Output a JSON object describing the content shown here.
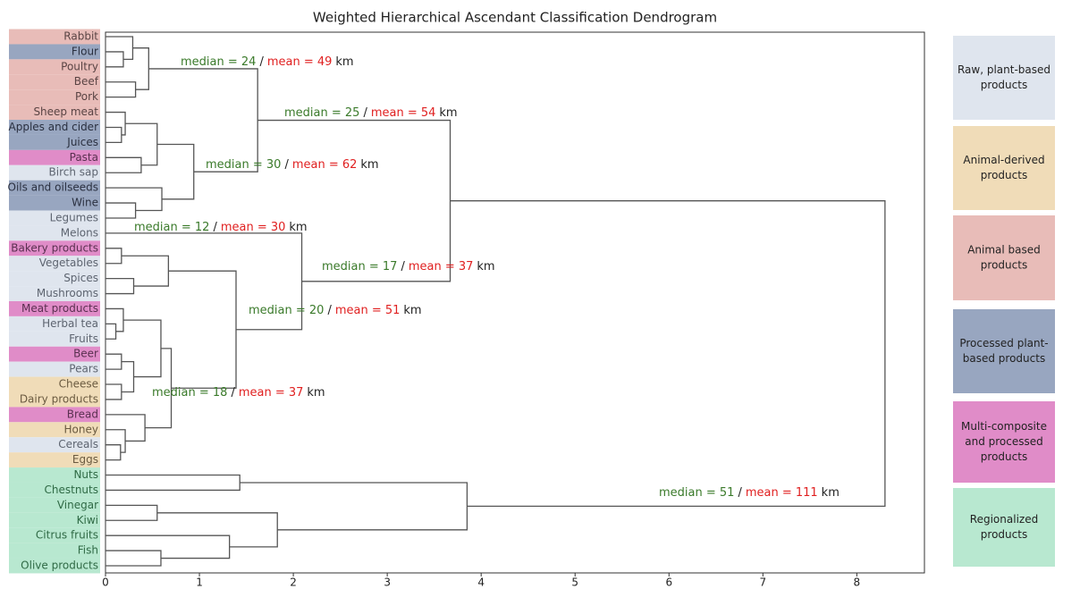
{
  "chart_data": {
    "type": "dendrogram",
    "title": "Weighted Hierarchical Ascendant Classification Dendrogram",
    "groups": [
      {
        "lines": [
          "Raw, plant-based",
          "products"
        ],
        "color": "#dfe5ee",
        "text_color": "#5d6470"
      },
      {
        "lines": [
          "Animal-derived",
          "products"
        ],
        "color": "#f0dcb8",
        "text_color": "#6a5a40"
      },
      {
        "lines": [
          "Animal based",
          "products"
        ],
        "color": "#e8bcb8",
        "text_color": "#5a4444"
      },
      {
        "lines": [
          "Processed plant-",
          "based products"
        ],
        "color": "#98a6c0",
        "text_color": "#2a3040"
      },
      {
        "lines": [
          "Multi-composite",
          "and processed",
          "products"
        ],
        "color": "#e08cc8",
        "text_color": "#5a3050"
      },
      {
        "lines": [
          "Regionalized",
          "products"
        ],
        "color": "#b8e8d0",
        "text_color": "#2f6a45"
      }
    ],
    "leaves": [
      {
        "label": "Rabbit",
        "group": 2
      },
      {
        "label": "Flour",
        "group": 3
      },
      {
        "label": "Poultry",
        "group": 2
      },
      {
        "label": "Beef",
        "group": 2
      },
      {
        "label": "Pork",
        "group": 2
      },
      {
        "label": "Sheep meat",
        "group": 2
      },
      {
        "label": "Apples and cider",
        "group": 3
      },
      {
        "label": "Juices",
        "group": 3
      },
      {
        "label": "Pasta",
        "group": 4
      },
      {
        "label": "Birch sap",
        "group": 0
      },
      {
        "label": "Oils and oilseeds",
        "group": 3
      },
      {
        "label": "Wine",
        "group": 3
      },
      {
        "label": "Legumes",
        "group": 0
      },
      {
        "label": "Melons",
        "group": 0
      },
      {
        "label": "Bakery products",
        "group": 4
      },
      {
        "label": "Vegetables",
        "group": 0
      },
      {
        "label": "Spices",
        "group": 0
      },
      {
        "label": "Mushrooms",
        "group": 0
      },
      {
        "label": "Meat products",
        "group": 4
      },
      {
        "label": "Herbal tea",
        "group": 0
      },
      {
        "label": "Fruits",
        "group": 0
      },
      {
        "label": "Beer",
        "group": 4
      },
      {
        "label": "Pears",
        "group": 0
      },
      {
        "label": "Cheese",
        "group": 1
      },
      {
        "label": "Dairy products",
        "group": 1
      },
      {
        "label": "Bread",
        "group": 4
      },
      {
        "label": "Honey",
        "group": 1
      },
      {
        "label": "Cereals",
        "group": 0
      },
      {
        "label": "Eggs",
        "group": 1
      },
      {
        "label": "Nuts",
        "group": 5
      },
      {
        "label": "Chestnuts",
        "group": 5
      },
      {
        "label": "Vinegar",
        "group": 5
      },
      {
        "label": "Kiwi",
        "group": 5
      },
      {
        "label": "Citrus fruits",
        "group": 5
      },
      {
        "label": "Fish",
        "group": 5
      },
      {
        "label": "Olive products",
        "group": 5
      }
    ],
    "links": [
      {
        "left": 1,
        "right": 2,
        "height": 0.19
      },
      {
        "left": 0,
        "right": 36,
        "height": 0.29
      },
      {
        "left": 3,
        "right": 4,
        "height": 0.32
      },
      {
        "left": 37,
        "right": 38,
        "height": 0.46
      },
      {
        "left": 6,
        "right": 7,
        "height": 0.17
      },
      {
        "left": 5,
        "right": 40,
        "height": 0.21
      },
      {
        "left": 8,
        "right": 9,
        "height": 0.38
      },
      {
        "left": 41,
        "right": 42,
        "height": 0.55
      },
      {
        "left": 11,
        "right": 12,
        "height": 0.32
      },
      {
        "left": 10,
        "right": 44,
        "height": 0.6
      },
      {
        "left": 43,
        "right": 45,
        "height": 0.94
      },
      {
        "left": 39,
        "right": 46,
        "height": 1.62
      },
      {
        "left": 14,
        "right": 15,
        "height": 0.17
      },
      {
        "left": 16,
        "right": 17,
        "height": 0.3
      },
      {
        "left": 48,
        "right": 49,
        "height": 0.67
      },
      {
        "left": 19,
        "right": 20,
        "height": 0.11
      },
      {
        "left": 18,
        "right": 51,
        "height": 0.19
      },
      {
        "left": 21,
        "right": 22,
        "height": 0.17
      },
      {
        "left": 23,
        "right": 24,
        "height": 0.17
      },
      {
        "left": 53,
        "right": 54,
        "height": 0.3
      },
      {
        "left": 52,
        "right": 55,
        "height": 0.59
      },
      {
        "left": 27,
        "right": 28,
        "height": 0.16
      },
      {
        "left": 26,
        "right": 57,
        "height": 0.21
      },
      {
        "left": 25,
        "right": 58,
        "height": 0.42
      },
      {
        "left": 56,
        "right": 59,
        "height": 0.7
      },
      {
        "left": 50,
        "right": 60,
        "height": 1.39
      },
      {
        "left": 13,
        "right": 61,
        "height": 2.09
      },
      {
        "left": 47,
        "right": 62,
        "height": 3.67
      },
      {
        "left": 29,
        "right": 30,
        "height": 1.43
      },
      {
        "left": 31,
        "right": 32,
        "height": 0.55
      },
      {
        "left": 34,
        "right": 35,
        "height": 0.59
      },
      {
        "left": 33,
        "right": 66,
        "height": 1.32
      },
      {
        "left": 65,
        "right": 67,
        "height": 1.83
      },
      {
        "left": 64,
        "right": 68,
        "height": 3.85
      },
      {
        "left": 63,
        "right": 69,
        "height": 8.3
      }
    ],
    "annotations": [
      {
        "median": "median = 24",
        "sep": "/",
        "mean": "mean = 49",
        "unit": "km"
      },
      {
        "median": "median = 25",
        "sep": "/",
        "mean": "mean = 54",
        "unit": "km"
      },
      {
        "median": "median = 30",
        "sep": "/",
        "mean": "mean = 62",
        "unit": "km"
      },
      {
        "median": "median = 12",
        "sep": "/",
        "mean": "mean = 30",
        "unit": "km"
      },
      {
        "median": "median = 17",
        "sep": "/",
        "mean": "mean = 37",
        "unit": "km"
      },
      {
        "median": "median = 20",
        "sep": "/",
        "mean": "mean = 51",
        "unit": "km"
      },
      {
        "median": "median = 18",
        "sep": "/",
        "mean": "mean = 37",
        "unit": "km"
      },
      {
        "median": "median = 51",
        "sep": "/",
        "mean": "mean = 111",
        "unit": "km"
      }
    ],
    "xlim": [
      0,
      8.72
    ],
    "xticks": [
      0,
      1,
      2,
      3,
      4,
      5,
      6,
      7,
      8
    ],
    "line_color": "#555555",
    "median_color": "#3a7a2a",
    "mean_color": "#e02020"
  }
}
